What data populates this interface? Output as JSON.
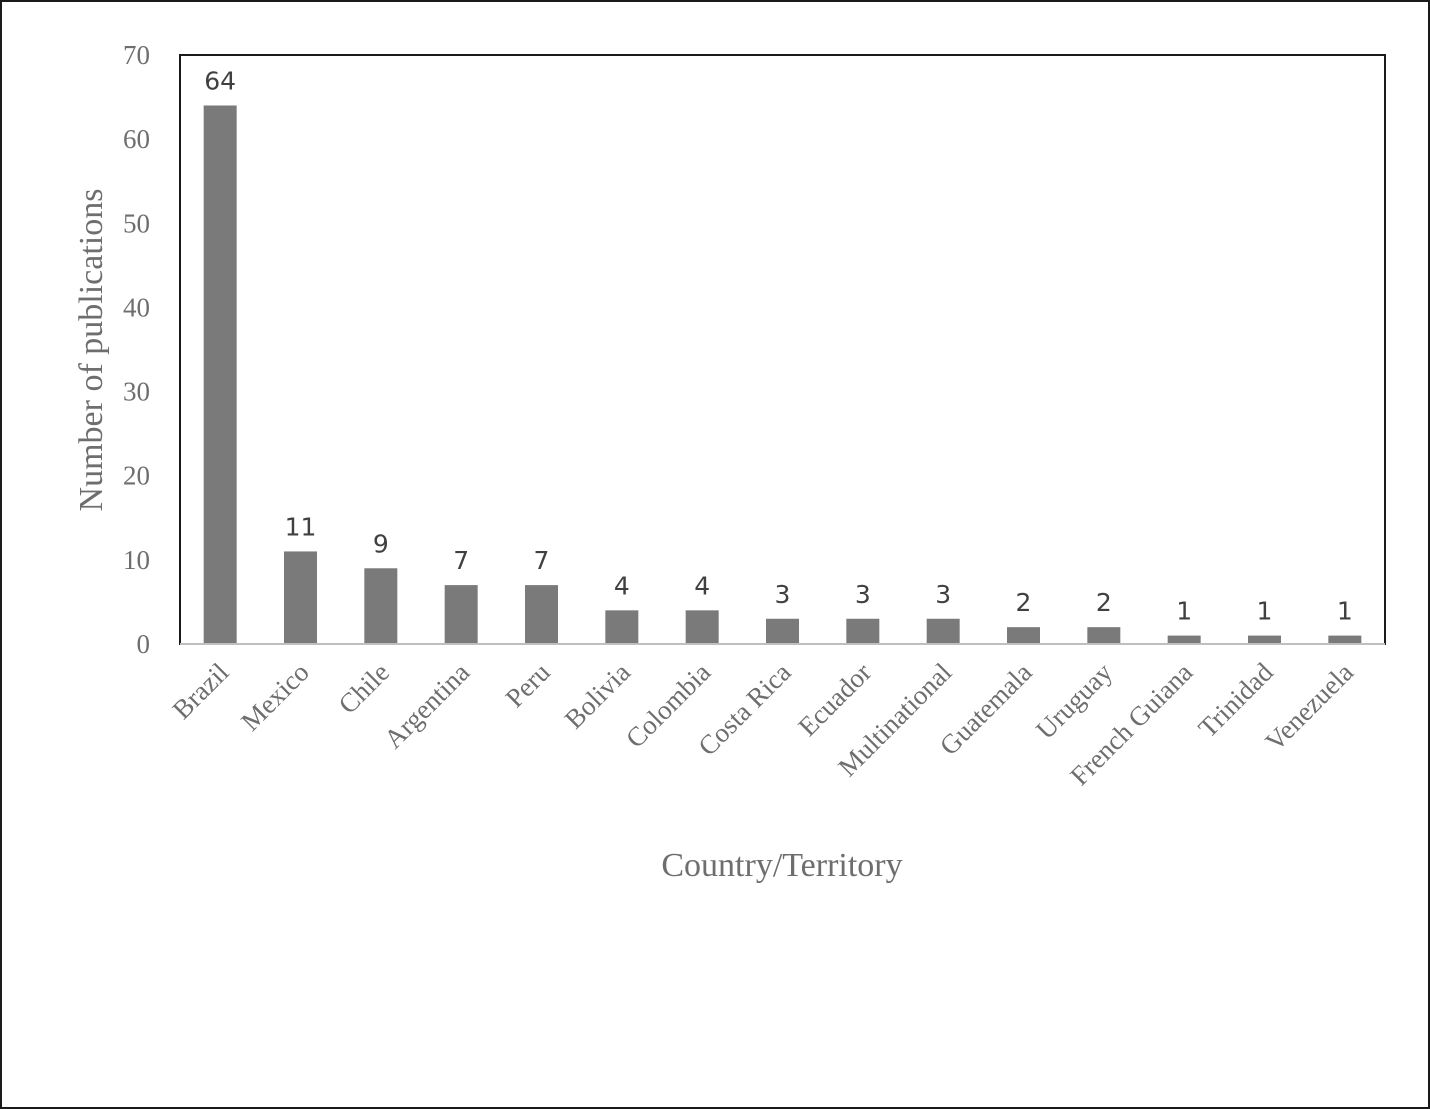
{
  "chart_data": {
    "type": "bar",
    "categories": [
      "Brazil",
      "Mexico",
      "Chile",
      "Argentina",
      "Peru",
      "Bolivia",
      "Colombia",
      "Costa Rica",
      "Ecuador",
      "Multinational",
      "Guatemala",
      "Uruguay",
      "French Guiana",
      "Trinidad",
      "Venezuela"
    ],
    "values": [
      64,
      11,
      9,
      7,
      7,
      4,
      4,
      3,
      3,
      3,
      2,
      2,
      1,
      1,
      1
    ],
    "data_labels": [
      "64",
      "11",
      "9",
      "7",
      "7",
      "4",
      "4",
      "3",
      "3",
      "3",
      "2",
      "2",
      "1",
      "1",
      "1"
    ],
    "title": "",
    "xlabel": "Country/Territory",
    "ylabel": "Number of publications",
    "ylim": [
      0,
      70
    ],
    "yticks": [
      0,
      10,
      20,
      30,
      40,
      50,
      60,
      70
    ],
    "ytick_labels": [
      "0",
      "10",
      "20",
      "30",
      "40",
      "50",
      "60",
      "70"
    ],
    "grid": false,
    "legend": "none",
    "bar_color": "#7a7a7a",
    "axis_color": "#1a1a1a"
  }
}
